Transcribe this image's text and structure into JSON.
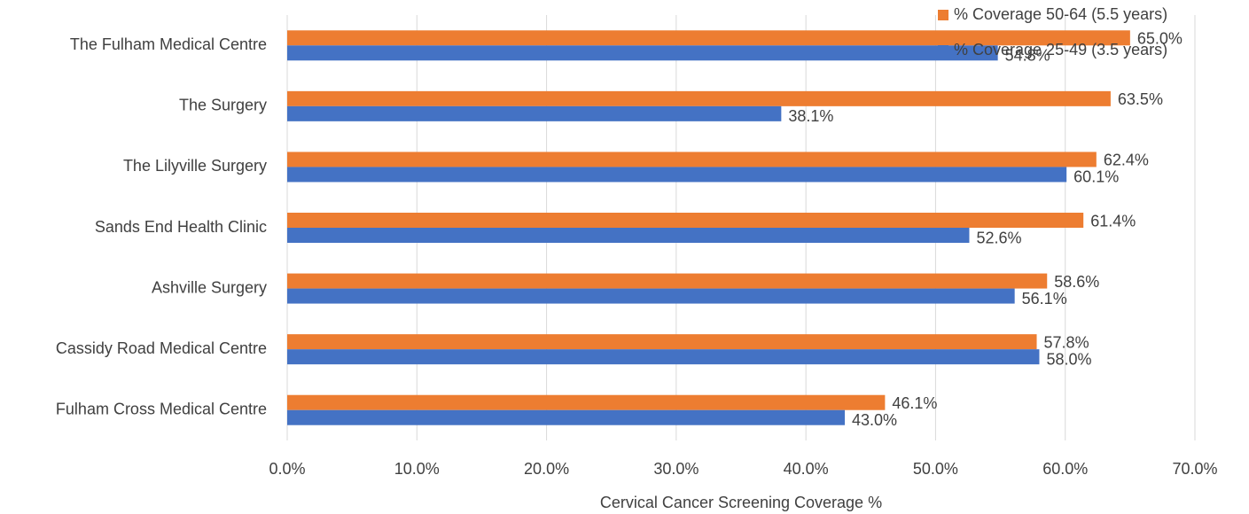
{
  "chart_data": {
    "type": "bar",
    "orientation": "horizontal",
    "x_label": "Cervical Cancer Screening Coverage %",
    "categories": [
      "The Fulham Medical Centre",
      "The Surgery",
      "The Lilyville Surgery",
      "Sands End Health Clinic",
      "Ashville Surgery",
      "Cassidy Road Medical Centre",
      "Fulham Cross Medical Centre"
    ],
    "series": [
      {
        "name": "% Coverage 50-64 (5.5 years)",
        "color": "#ED7D31",
        "values": [
          65.0,
          63.5,
          62.4,
          61.4,
          58.6,
          57.8,
          46.1
        ],
        "value_labels": [
          "65.0%",
          "63.5%",
          "62.4%",
          "61.4%",
          "58.6%",
          "57.8%",
          "46.1%"
        ]
      },
      {
        "name": "% Coverage 25-49 (3.5 years)",
        "color": "#4472C4",
        "values": [
          54.8,
          38.1,
          60.1,
          52.6,
          56.1,
          58.0,
          43.0
        ],
        "value_labels": [
          "54.8%",
          "38.1%",
          "60.1%",
          "52.6%",
          "56.1%",
          "58.0%",
          "43.0%"
        ]
      }
    ],
    "xlim": [
      0,
      70
    ],
    "xticks": [
      {
        "value": 0,
        "label": "0.0%"
      },
      {
        "value": 10,
        "label": "10.0%"
      },
      {
        "value": 20,
        "label": "20.0%"
      },
      {
        "value": 30,
        "label": "30.0%"
      },
      {
        "value": 40,
        "label": "40.0%"
      },
      {
        "value": 50,
        "label": "50.0%"
      },
      {
        "value": 60,
        "label": "60.0%"
      },
      {
        "value": 70,
        "label": "70.0%"
      }
    ],
    "grid": true,
    "legend": "top-right"
  }
}
